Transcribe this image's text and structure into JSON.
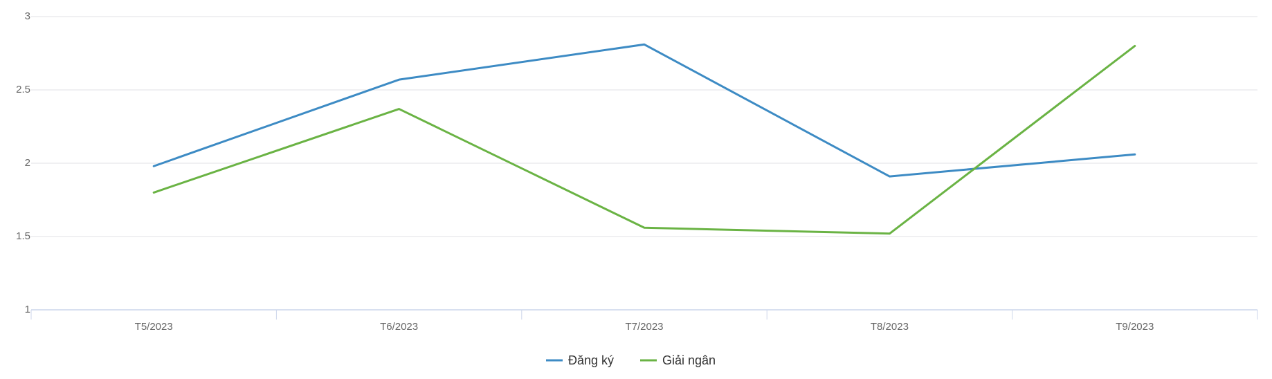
{
  "chart_data": {
    "type": "line",
    "title": "",
    "xlabel": "",
    "ylabel": "",
    "categories": [
      "T5/2023",
      "T6/2023",
      "T7/2023",
      "T8/2023",
      "T9/2023"
    ],
    "ylim": [
      1,
      3
    ],
    "yticks": [
      "1",
      "1.5",
      "2",
      "2.5",
      "3"
    ],
    "grid": true,
    "legend_position": "bottom-center",
    "series": [
      {
        "name": "Đăng ký",
        "color": "#3d8bc4",
        "values": [
          1.98,
          2.57,
          2.81,
          1.91,
          2.06
        ]
      },
      {
        "name": "Giải ngân",
        "color": "#6ab344",
        "values": [
          1.8,
          2.37,
          1.56,
          1.52,
          2.8
        ]
      }
    ]
  },
  "colors": {
    "gridline": "#e0e0e6",
    "axis": "#ccd6eb"
  }
}
